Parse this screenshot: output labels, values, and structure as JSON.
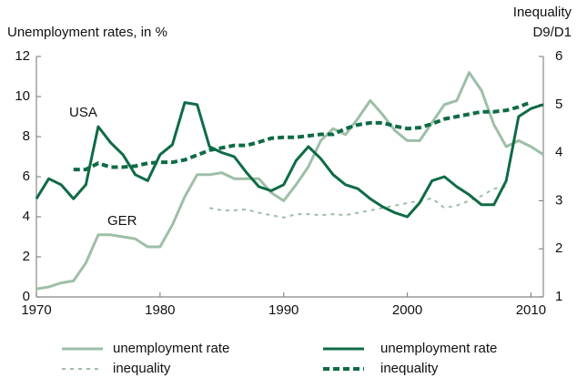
{
  "chart_data": {
    "type": "line",
    "y_label": "Unemployment rates, in %",
    "y2_label": [
      "Inequality",
      "D9/D1"
    ],
    "annotations": [
      "USA",
      "GER"
    ],
    "x": [
      1970,
      1971,
      1972,
      1973,
      1974,
      1975,
      1976,
      1977,
      1978,
      1979,
      1980,
      1981,
      1982,
      1983,
      1984,
      1985,
      1986,
      1987,
      1988,
      1989,
      1990,
      1991,
      1992,
      1993,
      1994,
      1995,
      1996,
      1997,
      1998,
      1999,
      2000,
      2001,
      2002,
      2003,
      2004,
      2005,
      2006,
      2007,
      2008,
      2009,
      2010,
      2011
    ],
    "series": [
      {
        "name": "unemployment rate",
        "color": "#9dbfa8",
        "dash": false,
        "values": [
          0.4,
          0.5,
          0.7,
          0.8,
          1.7,
          3.1,
          3.1,
          3.0,
          2.9,
          2.5,
          2.5,
          3.6,
          5.0,
          6.1,
          6.1,
          6.2,
          5.9,
          5.9,
          5.9,
          5.2,
          4.8,
          5.6,
          6.5,
          7.8,
          8.4,
          8.1,
          8.9,
          9.8,
          9.1,
          8.3,
          7.8,
          7.8,
          8.7,
          9.6,
          9.8,
          11.2,
          10.3,
          8.6,
          7.5,
          7.8,
          7.5,
          7.1
        ]
      },
      {
        "name": "unemployment rate",
        "color": "#0f6b45",
        "dash": false,
        "values": [
          4.9,
          5.9,
          5.6,
          4.9,
          5.6,
          8.5,
          7.7,
          7.1,
          6.1,
          5.8,
          7.1,
          7.6,
          9.7,
          9.6,
          7.5,
          7.2,
          7.0,
          6.2,
          5.5,
          5.3,
          5.6,
          6.8,
          7.5,
          6.9,
          6.1,
          5.6,
          5.4,
          4.9,
          4.5,
          4.2,
          4.0,
          4.7,
          5.8,
          6.0,
          5.5,
          5.1,
          4.6,
          4.6,
          5.8,
          9.0,
          9.4,
          9.6
        ]
      },
      {
        "name": "inequality",
        "color": "#9dbfa8",
        "dash": true,
        "axis": "y2",
        "values": [
          null,
          null,
          null,
          null,
          null,
          null,
          null,
          null,
          null,
          null,
          null,
          null,
          null,
          null,
          2.85,
          2.8,
          2.8,
          2.82,
          2.75,
          2.7,
          2.65,
          2.72,
          2.72,
          2.7,
          2.72,
          2.7,
          2.75,
          2.8,
          2.85,
          2.9,
          2.95,
          3.0,
          3.05,
          2.85,
          2.9,
          3.0,
          3.1,
          3.25,
          3.3,
          null,
          null,
          null
        ]
      },
      {
        "name": "inequality",
        "color": "#0f6b45",
        "dash": true,
        "axis": "y2",
        "values": [
          null,
          null,
          null,
          3.65,
          3.65,
          3.78,
          3.7,
          3.7,
          3.72,
          3.78,
          3.8,
          3.8,
          3.85,
          3.95,
          4.05,
          4.1,
          4.15,
          4.15,
          4.22,
          4.3,
          4.32,
          4.32,
          4.35,
          4.38,
          4.38,
          4.5,
          4.58,
          4.62,
          4.62,
          4.55,
          4.5,
          4.52,
          4.6,
          4.7,
          4.75,
          4.8,
          4.85,
          4.85,
          4.88,
          4.95,
          5.05,
          null
        ]
      }
    ],
    "xlim": [
      1970,
      2011
    ],
    "xticks": [
      1970,
      1980,
      1990,
      2000,
      2010
    ],
    "ylim": [
      0,
      12
    ],
    "yticks": [
      0,
      2,
      4,
      6,
      8,
      10,
      12
    ],
    "y2lim": [
      1,
      6
    ],
    "y2ticks": [
      1,
      2,
      3,
      4,
      5,
      6
    ],
    "grid": false
  }
}
